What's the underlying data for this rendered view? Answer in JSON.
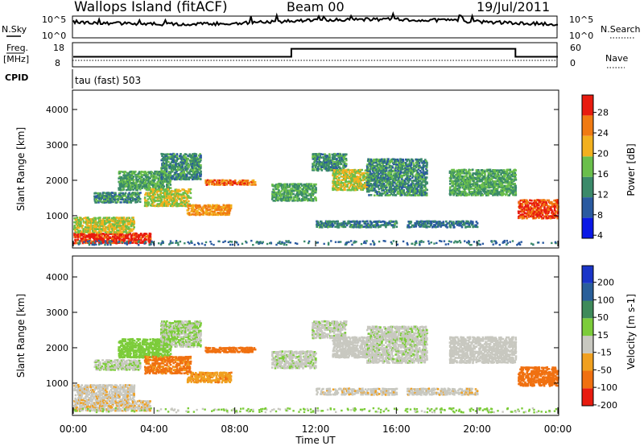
{
  "header": {
    "station": "Wallops Island (fitACF)",
    "beam": "Beam 00",
    "date": "19/Jul/2011"
  },
  "noise_panel": {
    "left_label": "N.Sky",
    "right_label": "N.Search",
    "left_ticks": [
      "10^5",
      "10^0"
    ],
    "right_ticks": [
      "10^5",
      "10^0"
    ]
  },
  "freq_panel": {
    "left_label_1": "Freq.",
    "left_label_2": "[MHz]",
    "right_label": "Nave",
    "left_ticks": [
      "18",
      "8"
    ],
    "right_ticks": [
      "60",
      "0"
    ]
  },
  "cpid": {
    "label": "CPID",
    "mode": "tau (fast) 503"
  },
  "power_panel": {
    "ylabel": "Slant Range [km]",
    "yticks": [
      "4000",
      "3000",
      "2000",
      "1000"
    ],
    "colorbar_label": "Power [dB]",
    "colorbar_ticks": [
      "28",
      "24",
      "20",
      "16",
      "12",
      "8",
      "4"
    ],
    "colors": [
      "#0a18e6",
      "#2a5aa0",
      "#3b8a6a",
      "#6abf4b",
      "#f2b01e",
      "#f07a12",
      "#e81b0f"
    ]
  },
  "velocity_panel": {
    "ylabel": "Slant Range [km]",
    "yticks": [
      "4000",
      "3000",
      "2000",
      "1000"
    ],
    "colorbar_label": "Velocity [m s-1]",
    "colorbar_ticks": [
      "200",
      "100",
      "50",
      "15",
      "-15",
      "-50",
      "-100",
      "-200"
    ],
    "colors": [
      "#1a35c8",
      "#2a5f9a",
      "#3e8a5a",
      "#7ccc3a",
      "#c8c8c0",
      "#f0a020",
      "#f07010",
      "#e81b0f"
    ]
  },
  "x_axis": {
    "label": "Time UT",
    "ticks": [
      "00:00",
      "04:00",
      "08:00",
      "12:00",
      "16:00",
      "20:00",
      "00:00"
    ]
  },
  "chart_data": {
    "type": "heatmap",
    "x_range_hours": [
      0,
      24
    ],
    "y_range_km": [
      180,
      4500
    ],
    "freq_mhz": [
      {
        "t": 0.0,
        "v": 10.5
      },
      {
        "t": 10.8,
        "v": 10.5
      },
      {
        "t": 10.8,
        "v": 16.0
      },
      {
        "t": 21.9,
        "v": 16.0
      },
      {
        "t": 21.9,
        "v": 10.5
      },
      {
        "t": 24.0,
        "v": 10.5
      }
    ],
    "echo_regions": [
      {
        "t0": 0.0,
        "t1": 3.8,
        "r0": 250,
        "r1": 550,
        "power": 26,
        "vel": -10
      },
      {
        "t0": 0.0,
        "t1": 3.0,
        "r0": 550,
        "r1": 1000,
        "power": 16,
        "vel": -5
      },
      {
        "t0": 1.0,
        "t1": 3.3,
        "r0": 1400,
        "r1": 1700,
        "power": 10,
        "vel": 10
      },
      {
        "t0": 2.2,
        "t1": 4.8,
        "r0": 1750,
        "r1": 2300,
        "power": 12,
        "vel": 30
      },
      {
        "t0": 3.5,
        "t1": 5.8,
        "r0": 1300,
        "r1": 1800,
        "power": 16,
        "vel": -60
      },
      {
        "t0": 5.6,
        "t1": 7.8,
        "r0": 1050,
        "r1": 1350,
        "power": 20,
        "vel": -40
      },
      {
        "t0": 6.5,
        "t1": 9.0,
        "r0": 1900,
        "r1": 2050,
        "power": 22,
        "vel": -70
      },
      {
        "t0": 4.3,
        "t1": 6.3,
        "r0": 2050,
        "r1": 2800,
        "power": 10,
        "vel": 15
      },
      {
        "t0": 9.8,
        "t1": 12.0,
        "r0": 1450,
        "r1": 1950,
        "power": 12,
        "vel": 5
      },
      {
        "t0": 11.8,
        "t1": 13.5,
        "r0": 2300,
        "r1": 2800,
        "power": 10,
        "vel": 5
      },
      {
        "t0": 12.8,
        "t1": 14.6,
        "r0": 1750,
        "r1": 2350,
        "power": 16,
        "vel": 0
      },
      {
        "t0": 14.5,
        "t1": 17.5,
        "r0": 1600,
        "r1": 2650,
        "power": 10,
        "vel": 5
      },
      {
        "t0": 12.0,
        "t1": 16.0,
        "r0": 700,
        "r1": 900,
        "power": 9,
        "vel": -5
      },
      {
        "t0": 16.5,
        "t1": 20.0,
        "r0": 700,
        "r1": 900,
        "power": 8,
        "vel": -5
      },
      {
        "t0": 18.6,
        "t1": 21.9,
        "r0": 1600,
        "r1": 2350,
        "power": 12,
        "vel": 0
      },
      {
        "t0": 22.0,
        "t1": 24.0,
        "r0": 950,
        "r1": 1500,
        "power": 24,
        "vel": -80
      }
    ]
  }
}
